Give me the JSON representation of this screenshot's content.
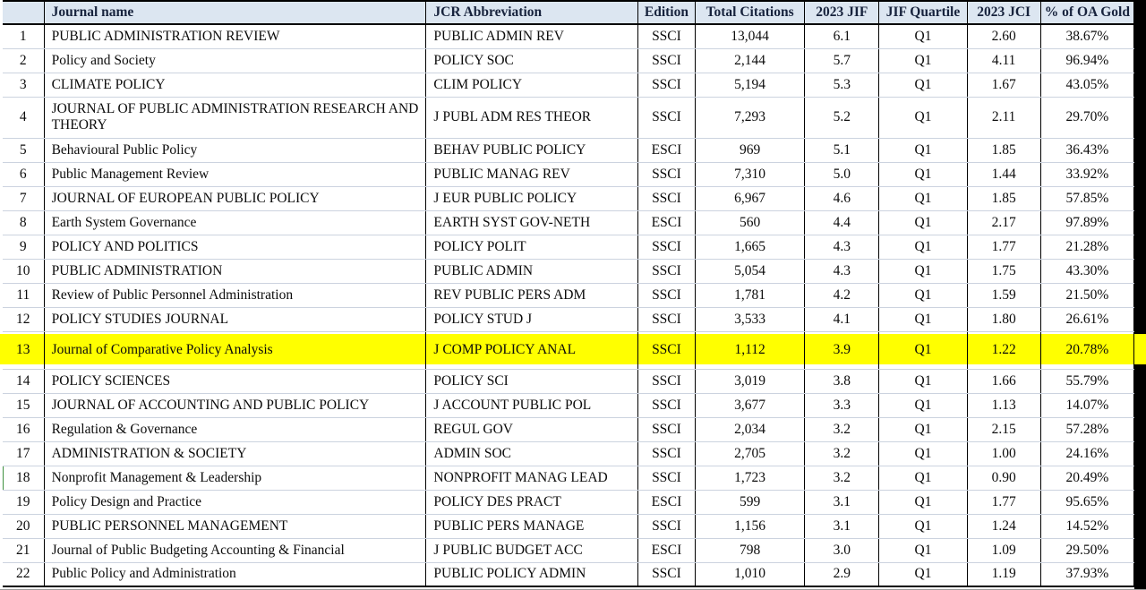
{
  "colors": {
    "header_bg": "#dce6f1",
    "highlight_yellow": "#ffff00",
    "marker_green": "#3f9140",
    "grid_line": "#ccd3df",
    "table_border": "#000000"
  },
  "table": {
    "columns": [
      {
        "key": "num",
        "label": ""
      },
      {
        "key": "name",
        "label": "Journal name"
      },
      {
        "key": "abbrev",
        "label": "JCR Abbreviation"
      },
      {
        "key": "edition",
        "label": "Edition"
      },
      {
        "key": "citations",
        "label": "Total Citations"
      },
      {
        "key": "jif",
        "label": "2023 JIF"
      },
      {
        "key": "quartile",
        "label": "JIF Quartile"
      },
      {
        "key": "jci",
        "label": "2023 JCI"
      },
      {
        "key": "oa",
        "label": "% of OA Gold"
      }
    ],
    "rows": [
      {
        "num": "1",
        "name": "PUBLIC ADMINISTRATION REVIEW",
        "abbrev": "PUBLIC ADMIN REV",
        "edition": "SSCI",
        "citations": "13,044",
        "jif": "6.1",
        "quartile": "Q1",
        "jci": "2.60",
        "oa": "38.67%"
      },
      {
        "num": "2",
        "name": "Policy and Society",
        "abbrev": "POLICY SOC",
        "edition": "SSCI",
        "citations": "2,144",
        "jif": "5.7",
        "quartile": "Q1",
        "jci": "4.11",
        "oa": "96.94%"
      },
      {
        "num": "3",
        "name": "CLIMATE POLICY",
        "abbrev": "CLIM POLICY",
        "edition": "SSCI",
        "citations": "5,194",
        "jif": "5.3",
        "quartile": "Q1",
        "jci": "1.67",
        "oa": "43.05%"
      },
      {
        "num": "4",
        "name": "JOURNAL OF PUBLIC ADMINISTRATION RESEARCH AND THEORY",
        "abbrev": "J PUBL ADM RES THEOR",
        "edition": "SSCI",
        "citations": "7,293",
        "jif": "5.2",
        "quartile": "Q1",
        "jci": "2.11",
        "oa": "29.70%",
        "tall": true
      },
      {
        "num": "5",
        "name": "Behavioural Public Policy",
        "abbrev": "BEHAV PUBLIC POLICY",
        "edition": "ESCI",
        "citations": "969",
        "jif": "5.1",
        "quartile": "Q1",
        "jci": "1.85",
        "oa": "36.43%"
      },
      {
        "num": "6",
        "name": "Public Management Review",
        "abbrev": "PUBLIC MANAG REV",
        "edition": "SSCI",
        "citations": "7,310",
        "jif": "5.0",
        "quartile": "Q1",
        "jci": "1.44",
        "oa": "33.92%"
      },
      {
        "num": "7",
        "name": "JOURNAL OF EUROPEAN PUBLIC POLICY",
        "abbrev": "J EUR PUBLIC POLICY",
        "edition": "SSCI",
        "citations": "6,967",
        "jif": "4.6",
        "quartile": "Q1",
        "jci": "1.85",
        "oa": "57.85%"
      },
      {
        "num": "8",
        "name": "Earth System Governance",
        "abbrev": "EARTH SYST GOV-NETH",
        "edition": "ESCI",
        "citations": "560",
        "jif": "4.4",
        "quartile": "Q1",
        "jci": "2.17",
        "oa": "97.89%"
      },
      {
        "num": "9",
        "name": "POLICY AND POLITICS",
        "abbrev": "POLICY POLIT",
        "edition": "SSCI",
        "citations": "1,665",
        "jif": "4.3",
        "quartile": "Q1",
        "jci": "1.77",
        "oa": "21.28%"
      },
      {
        "num": "10",
        "name": "PUBLIC ADMINISTRATION",
        "abbrev": "PUBLIC ADMIN",
        "edition": "SSCI",
        "citations": "5,054",
        "jif": "4.3",
        "quartile": "Q1",
        "jci": "1.75",
        "oa": "43.30%"
      },
      {
        "num": "11",
        "name": "Review of Public Personnel Administration",
        "abbrev": "REV PUBLIC PERS ADM",
        "edition": "SSCI",
        "citations": "1,781",
        "jif": "4.2",
        "quartile": "Q1",
        "jci": "1.59",
        "oa": "21.50%"
      },
      {
        "num": "12",
        "name": "POLICY STUDIES JOURNAL",
        "abbrev": "POLICY STUD J",
        "edition": "SSCI",
        "citations": "3,533",
        "jif": "4.1",
        "quartile": "Q1",
        "jci": "1.80",
        "oa": "26.61%"
      },
      {
        "num": "13",
        "name": "Journal of Comparative Policy Analysis",
        "abbrev": "J COMP POLICY ANAL",
        "edition": "SSCI",
        "citations": "1,112",
        "jif": "3.9",
        "quartile": "Q1",
        "jci": "1.22",
        "oa": "20.78%",
        "highlight": true
      },
      {
        "num": "14",
        "name": "POLICY SCIENCES",
        "abbrev": "POLICY SCI",
        "edition": "SSCI",
        "citations": "3,019",
        "jif": "3.8",
        "quartile": "Q1",
        "jci": "1.66",
        "oa": "55.79%"
      },
      {
        "num": "15",
        "name": "JOURNAL OF ACCOUNTING AND PUBLIC POLICY",
        "abbrev": "J ACCOUNT PUBLIC POL",
        "edition": "SSCI",
        "citations": "3,677",
        "jif": "3.3",
        "quartile": "Q1",
        "jci": "1.13",
        "oa": "14.07%"
      },
      {
        "num": "16",
        "name": "Regulation & Governance",
        "abbrev": "REGUL GOV",
        "edition": "SSCI",
        "citations": "2,034",
        "jif": "3.2",
        "quartile": "Q1",
        "jci": "2.15",
        "oa": "57.28%"
      },
      {
        "num": "17",
        "name": "ADMINISTRATION & SOCIETY",
        "abbrev": "ADMIN SOC",
        "edition": "SSCI",
        "citations": "2,705",
        "jif": "3.2",
        "quartile": "Q1",
        "jci": "1.00",
        "oa": "24.16%"
      },
      {
        "num": "18",
        "name": "Nonprofit Management & Leadership",
        "abbrev": "NONPROFIT MANAG LEAD",
        "edition": "SSCI",
        "citations": "1,723",
        "jif": "3.2",
        "quartile": "Q1",
        "jci": "0.90",
        "oa": "20.49%",
        "marker": true
      },
      {
        "num": "19",
        "name": "Policy Design and Practice",
        "abbrev": "POLICY DES PRACT",
        "edition": "ESCI",
        "citations": "599",
        "jif": "3.1",
        "quartile": "Q1",
        "jci": "1.77",
        "oa": "95.65%"
      },
      {
        "num": "20",
        "name": "PUBLIC PERSONNEL MANAGEMENT",
        "abbrev": "PUBLIC PERS MANAGE",
        "edition": "SSCI",
        "citations": "1,156",
        "jif": "3.1",
        "quartile": "Q1",
        "jci": "1.24",
        "oa": "14.52%"
      },
      {
        "num": "21",
        "name": "Journal of Public Budgeting Accounting & Financial",
        "abbrev": "J PUBLIC BUDGET ACC",
        "edition": "ESCI",
        "citations": "798",
        "jif": "3.0",
        "quartile": "Q1",
        "jci": "1.09",
        "oa": "29.50%"
      },
      {
        "num": "22",
        "name": "Public Policy and Administration",
        "abbrev": "PUBLIC POLICY ADMIN",
        "edition": "SSCI",
        "citations": "1,010",
        "jif": "2.9",
        "quartile": "Q1",
        "jci": "1.19",
        "oa": "37.93%"
      }
    ]
  }
}
